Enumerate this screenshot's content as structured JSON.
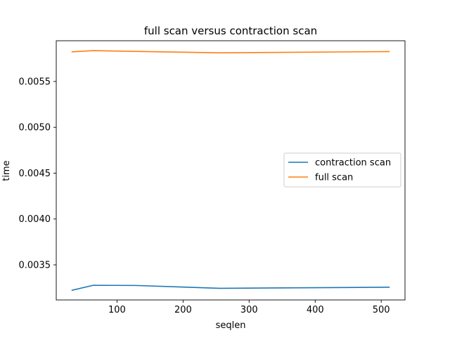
{
  "chart_data": {
    "type": "line",
    "title": "full scan versus contraction scan",
    "xlabel": "seqlen",
    "ylabel": "time",
    "x": [
      32,
      64,
      128,
      256,
      512
    ],
    "series": [
      {
        "name": "contraction scan",
        "color": "#1f77b4",
        "values": [
          0.003223,
          0.003277,
          0.003275,
          0.003244,
          0.003256
        ]
      },
      {
        "name": "full scan",
        "color": "#ff7f0e",
        "values": [
          0.005823,
          0.005836,
          0.005828,
          0.005812,
          0.005826
        ]
      }
    ],
    "xlim": [
      8,
      536
    ],
    "ylim": [
      0.003117,
      0.005944
    ],
    "xticks": [
      100,
      200,
      300,
      400,
      500
    ],
    "xtick_labels": [
      "100",
      "200",
      "300",
      "400",
      "500"
    ],
    "yticks": [
      0.0035,
      0.004,
      0.0045,
      0.005,
      0.0055
    ],
    "ytick_labels": [
      "0.0035",
      "0.0040",
      "0.0045",
      "0.0050",
      "0.0055"
    ],
    "grid": false,
    "legend_position": "center-right"
  }
}
